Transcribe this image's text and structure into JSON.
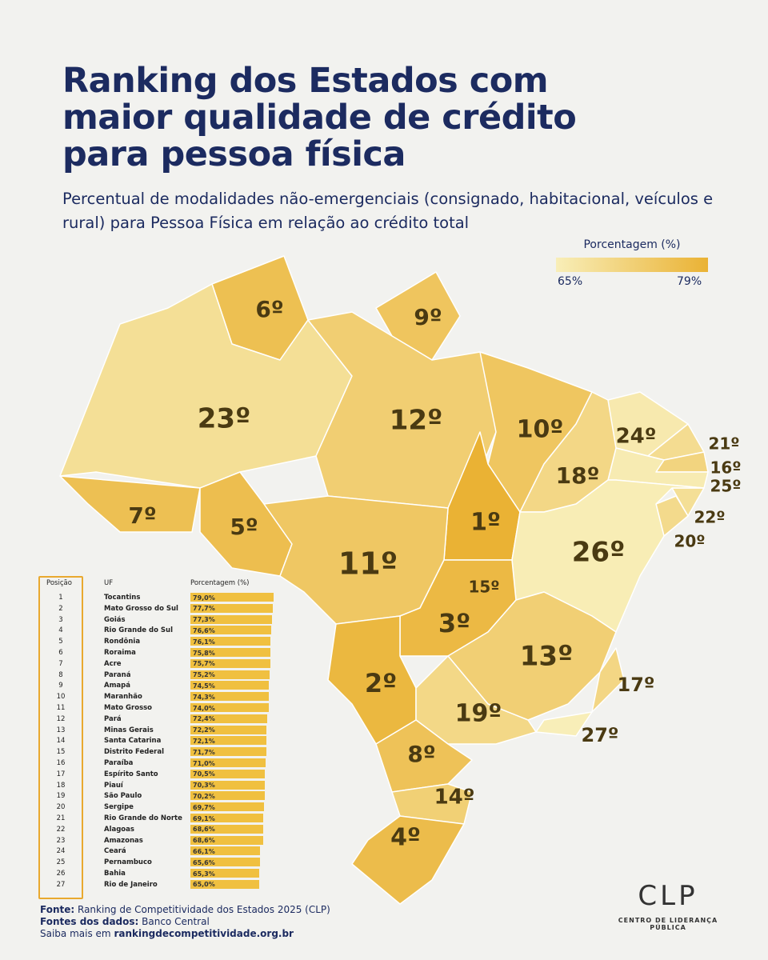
{
  "header": {
    "title": "Ranking dos Estados com maior qualidade de crédito para pessoa física",
    "subtitle": "Percentual de modalidades não-emergenciais (consignado, habitacional, veículos e rural) para Pessoa Física em relação ao crédito total"
  },
  "legend": {
    "title": "Porcentagem (%)",
    "min": {
      "value": 65,
      "label": "65%"
    },
    "max": {
      "value": 79,
      "label": "79%"
    }
  },
  "map": {
    "labels": [
      "6º",
      "9º",
      "23º",
      "12º",
      "10º",
      "24º",
      "21º",
      "16º",
      "25º",
      "18º",
      "7º",
      "5º",
      "1º",
      "22º",
      "20º",
      "26º",
      "11º",
      "15º",
      "3º",
      "13º",
      "17º",
      "2º",
      "19º",
      "27º",
      "8º",
      "14º",
      "4º"
    ]
  },
  "table": {
    "columns": [
      "Posição",
      "UF",
      "Porcentagem (%)"
    ],
    "rows": [
      {
        "position": 1,
        "state": "Tocantins",
        "value": 79.0,
        "value_label": "79,0%"
      },
      {
        "position": 2,
        "state": "Mato Grosso do Sul",
        "value": 77.7,
        "value_label": "77,7%"
      },
      {
        "position": 3,
        "state": "Goiás",
        "value": 77.3,
        "value_label": "77,3%"
      },
      {
        "position": 4,
        "state": "Rio Grande do Sul",
        "value": 76.6,
        "value_label": "76,6%"
      },
      {
        "position": 5,
        "state": "Rondônia",
        "value": 76.1,
        "value_label": "76,1%"
      },
      {
        "position": 6,
        "state": "Roraima",
        "value": 75.8,
        "value_label": "75,8%"
      },
      {
        "position": 7,
        "state": "Acre",
        "value": 75.7,
        "value_label": "75,7%"
      },
      {
        "position": 8,
        "state": "Paraná",
        "value": 75.2,
        "value_label": "75,2%"
      },
      {
        "position": 9,
        "state": "Amapá",
        "value": 74.5,
        "value_label": "74,5%"
      },
      {
        "position": 10,
        "state": "Maranhão",
        "value": 74.3,
        "value_label": "74,3%"
      },
      {
        "position": 11,
        "state": "Mato Grosso",
        "value": 74.0,
        "value_label": "74,0%"
      },
      {
        "position": 12,
        "state": "Pará",
        "value": 72.4,
        "value_label": "72,4%"
      },
      {
        "position": 13,
        "state": "Minas Gerais",
        "value": 72.2,
        "value_label": "72,2%"
      },
      {
        "position": 14,
        "state": "Santa Catarina",
        "value": 72.1,
        "value_label": "72,1%"
      },
      {
        "position": 15,
        "state": "Distrito Federal",
        "value": 71.7,
        "value_label": "71,7%"
      },
      {
        "position": 16,
        "state": "Paraíba",
        "value": 71.0,
        "value_label": "71,0%"
      },
      {
        "position": 17,
        "state": "Espírito Santo",
        "value": 70.5,
        "value_label": "70,5%"
      },
      {
        "position": 18,
        "state": "Piauí",
        "value": 70.3,
        "value_label": "70,3%"
      },
      {
        "position": 19,
        "state": "São Paulo",
        "value": 70.2,
        "value_label": "70,2%"
      },
      {
        "position": 20,
        "state": "Sergipe",
        "value": 69.7,
        "value_label": "69,7%"
      },
      {
        "position": 21,
        "state": "Rio Grande do Norte",
        "value": 69.1,
        "value_label": "69,1%"
      },
      {
        "position": 22,
        "state": "Alagoas",
        "value": 68.6,
        "value_label": "68,6%"
      },
      {
        "position": 23,
        "state": "Amazonas",
        "value": 68.6,
        "value_label": "68,6%"
      },
      {
        "position": 24,
        "state": "Ceará",
        "value": 66.1,
        "value_label": "66,1%"
      },
      {
        "position": 25,
        "state": "Pernambuco",
        "value": 65.6,
        "value_label": "65,6%"
      },
      {
        "position": 26,
        "state": "Bahia",
        "value": 65.3,
        "value_label": "65,3%"
      },
      {
        "position": 27,
        "state": "Rio de Janeiro",
        "value": 65.0,
        "value_label": "65,0%"
      }
    ]
  },
  "footer": {
    "source_label": "Fonte:",
    "source": "Ranking de Competitividade dos Estados 2025 (CLP)",
    "data_label": "Fontes dos dados:",
    "data_source": "Banco Central",
    "more_label": "Saiba mais em",
    "more_link": "rankingdecompetitividade.org.br"
  },
  "logo": {
    "name": "CLP",
    "tagline": "CENTRO DE LIDERANÇA PÚBLICA"
  }
}
